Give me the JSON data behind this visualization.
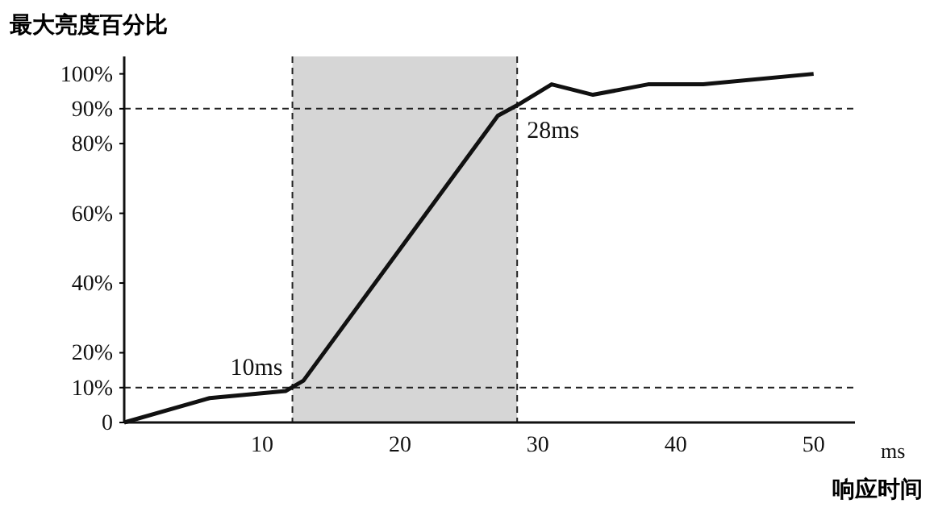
{
  "chart_data": {
    "type": "line",
    "ylabel": "最大亮度百分比",
    "xlabel": "响应时间",
    "x": [
      0,
      6.2,
      11.7,
      13,
      27.1,
      28.5,
      31,
      34,
      38,
      42,
      50
    ],
    "series": [
      {
        "color": "#111111",
        "values": [
          0,
          7,
          9,
          12,
          88,
          91,
          97,
          94,
          97,
          97,
          100
        ]
      }
    ],
    "xlim": [
      0,
      53
    ],
    "ylim": [
      0,
      105
    ],
    "xticks": [
      10,
      20,
      30,
      40,
      50
    ],
    "yticks": [
      {
        "value": 0,
        "label": "0"
      },
      {
        "value": 10,
        "label": "10%"
      },
      {
        "value": 20,
        "label": "20%"
      },
      {
        "value": 40,
        "label": "40%"
      },
      {
        "value": 60,
        "label": "60%"
      },
      {
        "value": 80,
        "label": "80%"
      },
      {
        "value": 90,
        "label": "90%"
      },
      {
        "value": 100,
        "label": "100%"
      }
    ],
    "bands": [
      {
        "axis": "x",
        "from": 12.2,
        "to": 28.5,
        "color": "#d6d6d6"
      }
    ],
    "ref_lines": [
      {
        "axis": "x",
        "value": 12.2,
        "line_style": "dashed"
      },
      {
        "axis": "x",
        "value": 28.5,
        "line_style": "dashed"
      },
      {
        "axis": "y",
        "value": 10,
        "line_style": "dashed"
      },
      {
        "axis": "y",
        "value": 90,
        "line_style": "dashed"
      }
    ],
    "annotations": [
      {
        "text": "10ms",
        "x": 12.2,
        "y": 10
      },
      {
        "text": "28ms",
        "x": 28.5,
        "y": 90
      },
      "ms"
    ],
    "grid": false,
    "marker": "none",
    "line_style": "solid"
  }
}
